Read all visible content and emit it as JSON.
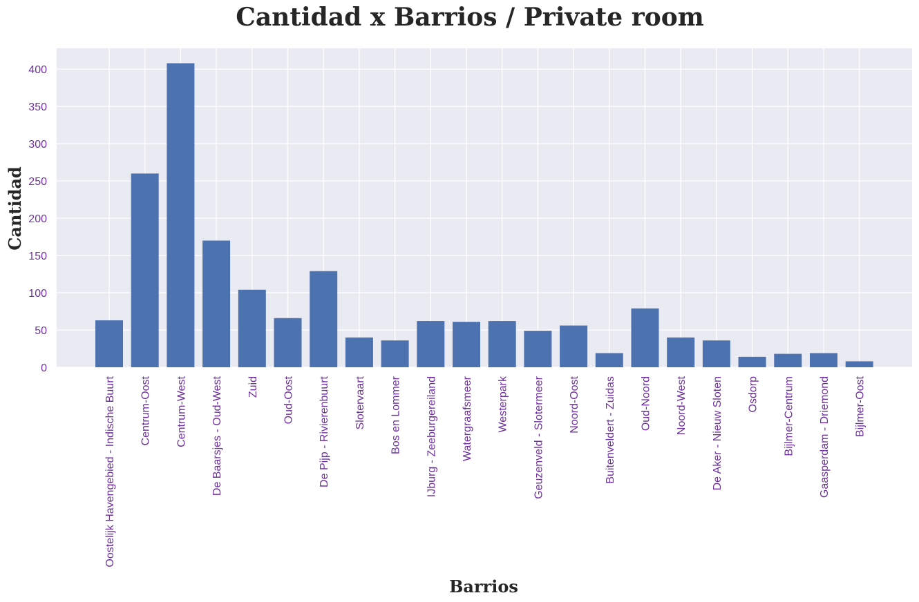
{
  "chart_data": {
    "type": "bar",
    "title": "Cantidad x Barrios / Private room",
    "xlabel": "Barrios",
    "ylabel": "Cantidad",
    "ylim": [
      0,
      428
    ],
    "yticks": [
      0,
      50,
      100,
      150,
      200,
      250,
      300,
      350,
      400
    ],
    "grid": true,
    "categories": [
      "Oostelijk Havengebied - Indische Buurt",
      "Centrum-Oost",
      "Centrum-West",
      "De Baarsjes - Oud-West",
      "Zuid",
      "Oud-Oost",
      "De Pijp - Rivierenbuurt",
      "Slotervaart",
      "Bos en Lommer",
      "IJburg - Zeeburgereiland",
      "Watergraafsmeer",
      "Westerpark",
      "Geuzenveld - Slotermeer",
      "Noord-Oost",
      "Buitenveldert - Zuidas",
      "Oud-Noord",
      "Noord-West",
      "De Aker - Nieuw Sloten",
      "Osdorp",
      "Bijlmer-Centrum",
      "Gaasperdam - Driemond",
      "Bijlmer-Oost"
    ],
    "values": [
      63,
      260,
      408,
      170,
      104,
      66,
      129,
      40,
      36,
      62,
      61,
      62,
      49,
      56,
      19,
      79,
      40,
      36,
      14,
      18,
      19,
      8
    ],
    "colors": {
      "bar": "#4c72b0",
      "plot_background": "#eaeaf2",
      "grid": "#ffffff",
      "tick_labels": "#7030a0",
      "text": "#262626"
    }
  }
}
